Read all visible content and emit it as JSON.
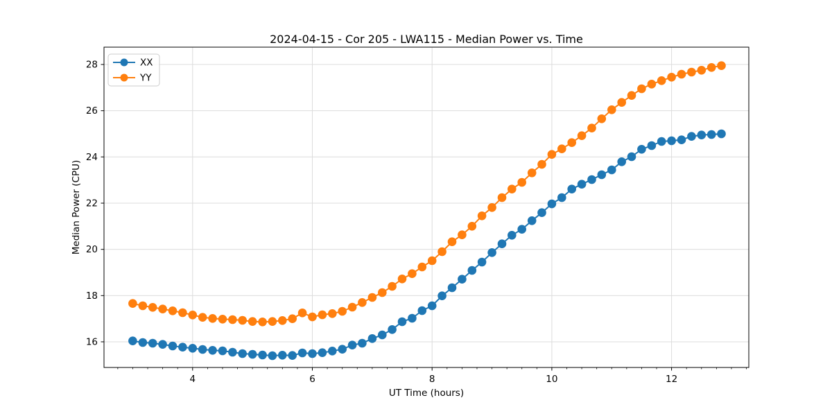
{
  "window": {
    "background": "#ffffff"
  },
  "chart_data": {
    "type": "line",
    "title": "2024-04-15 - Cor 205 - LWA115 - Median Power vs. Time",
    "xlabel": "UT Time (hours)",
    "ylabel": "Median Power (CPU)",
    "xlim": [
      2.52,
      13.29
    ],
    "ylim": [
      14.89,
      28.75
    ],
    "xticks": [
      4,
      6,
      8,
      10,
      12
    ],
    "yticks": [
      16,
      18,
      20,
      22,
      24,
      26,
      28
    ],
    "x_minor_step": 0.25,
    "grid": true,
    "grid_color": "#dcdcdc",
    "spine_color": "#000000",
    "text_color": "#000000",
    "legend_position": "upper-left",
    "legend_border_color": "#cccccc",
    "x": [
      3.0,
      3.167,
      3.333,
      3.5,
      3.667,
      3.833,
      4.0,
      4.167,
      4.333,
      4.5,
      4.667,
      4.833,
      5.0,
      5.167,
      5.333,
      5.5,
      5.667,
      5.833,
      6.0,
      6.167,
      6.333,
      6.5,
      6.667,
      6.833,
      7.0,
      7.167,
      7.333,
      7.5,
      7.667,
      7.833,
      8.0,
      8.167,
      8.333,
      8.5,
      8.667,
      8.833,
      9.0,
      9.167,
      9.333,
      9.5,
      9.667,
      9.833,
      10.0,
      10.167,
      10.333,
      10.5,
      10.667,
      10.833,
      11.0,
      11.167,
      11.333,
      11.5,
      11.667,
      11.833,
      12.0,
      12.167,
      12.333,
      12.5,
      12.667,
      12.833
    ],
    "series": [
      {
        "name": "XX",
        "color": "#1f77b4",
        "marker": "circle",
        "values": [
          16.04,
          15.97,
          15.94,
          15.89,
          15.82,
          15.77,
          15.72,
          15.67,
          15.63,
          15.61,
          15.55,
          15.49,
          15.46,
          15.43,
          15.4,
          15.42,
          15.41,
          15.52,
          15.49,
          15.53,
          15.6,
          15.68,
          15.86,
          15.94,
          16.14,
          16.3,
          16.53,
          16.87,
          17.02,
          17.35,
          17.56,
          17.99,
          18.34,
          18.71,
          19.09,
          19.45,
          19.86,
          20.24,
          20.61,
          20.87,
          21.24,
          21.59,
          21.97,
          22.24,
          22.61,
          22.82,
          23.02,
          23.23,
          23.44,
          23.79,
          24.01,
          24.33,
          24.49,
          24.67,
          24.7,
          24.74,
          24.89,
          24.95,
          24.97,
          25.0
        ]
      },
      {
        "name": "YY",
        "color": "#ff7f0e",
        "marker": "circle",
        "values": [
          17.66,
          17.56,
          17.49,
          17.42,
          17.34,
          17.26,
          17.16,
          17.06,
          17.01,
          16.98,
          16.96,
          16.93,
          16.88,
          16.86,
          16.88,
          16.92,
          17.0,
          17.25,
          17.08,
          17.17,
          17.22,
          17.32,
          17.5,
          17.7,
          17.92,
          18.13,
          18.4,
          18.72,
          18.95,
          19.24,
          19.51,
          19.9,
          20.33,
          20.63,
          21.0,
          21.45,
          21.81,
          22.24,
          22.61,
          22.9,
          23.31,
          23.68,
          24.11,
          24.35,
          24.62,
          24.92,
          25.25,
          25.65,
          26.04,
          26.36,
          26.66,
          26.95,
          27.15,
          27.3,
          27.45,
          27.58,
          27.67,
          27.75,
          27.87,
          27.95
        ]
      }
    ]
  }
}
